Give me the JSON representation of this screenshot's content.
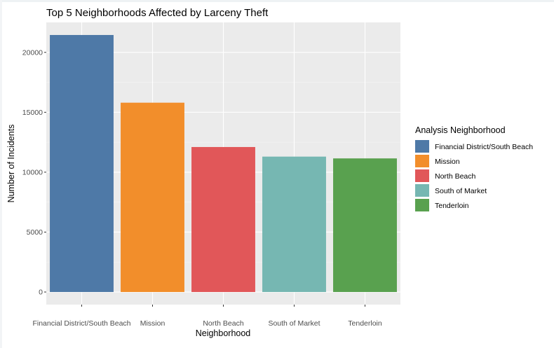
{
  "chart_data": {
    "type": "bar",
    "title": "Top 5 Neighborhoods Affected by Larceny Theft",
    "xlabel": "Neighborhood",
    "ylabel": "Number of Incidents",
    "categories": [
      "Financial District/South Beach",
      "Mission",
      "North Beach",
      "South of Market",
      "Tenderloin"
    ],
    "values": [
      21450,
      15800,
      12100,
      11300,
      11150
    ],
    "colors": [
      "#4e79a7",
      "#f28e2b",
      "#e15759",
      "#76b7b2",
      "#59a14f"
    ],
    "ylim": [
      0,
      22500
    ],
    "yticks": [
      0,
      5000,
      10000,
      15000,
      20000
    ],
    "ytick_labels": [
      "0",
      "5000",
      "10000",
      "15000",
      "20000"
    ],
    "grid": true,
    "legend": {
      "title": "Analysis Neighborhood",
      "placement": "right",
      "entries": [
        "Financial District/South Beach",
        "Mission",
        "North Beach",
        "South of Market",
        "Tenderloin"
      ]
    }
  }
}
